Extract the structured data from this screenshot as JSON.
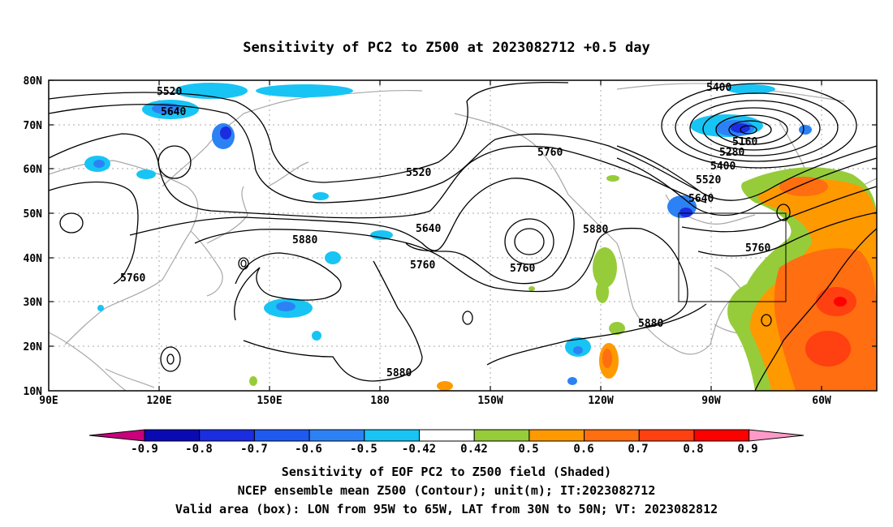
{
  "title": "Sensitivity of PC2 to Z500 at 2023082712 +0.5 day",
  "axes": {
    "lat_labels": [
      "80N",
      "70N",
      "60N",
      "50N",
      "40N",
      "30N",
      "20N",
      "10N"
    ],
    "lon_labels": [
      "90E",
      "120E",
      "150E",
      "180",
      "150W",
      "120W",
      "90W",
      "60W"
    ]
  },
  "contour_labels": [
    "5520",
    "5640",
    "5520",
    "5640",
    "5760",
    "5880",
    "5760",
    "5760",
    "5880",
    "5880",
    "5880",
    "5400",
    "5160",
    "5280",
    "5400",
    "5520",
    "5640",
    "5760"
  ],
  "colorbar": {
    "labels": [
      "-0.9",
      "-0.8",
      "-0.7",
      "-0.6",
      "-0.5",
      "-0.42",
      "0.42",
      "0.5",
      "0.6",
      "0.7",
      "0.8",
      "0.9"
    ],
    "colors": [
      "#c8007c",
      "#0a0ab4",
      "#1a2de0",
      "#1e5af0",
      "#2c82f4",
      "#18c4f4",
      "#ffffff",
      "#96cc3a",
      "#ff9900",
      "#ff6e10",
      "#ff4010",
      "#ff0000",
      "#ff9ac8"
    ]
  },
  "captions": {
    "line1": "Sensitivity of EOF PC2 to Z500 field (Shaded)",
    "line2": "NCEP ensemble mean Z500 (Contour); unit(m); IT:2023082712",
    "line3": "Valid area (box): LON from 95W to 65W, LAT from 30N to 50N; VT: 2023082812"
  }
}
